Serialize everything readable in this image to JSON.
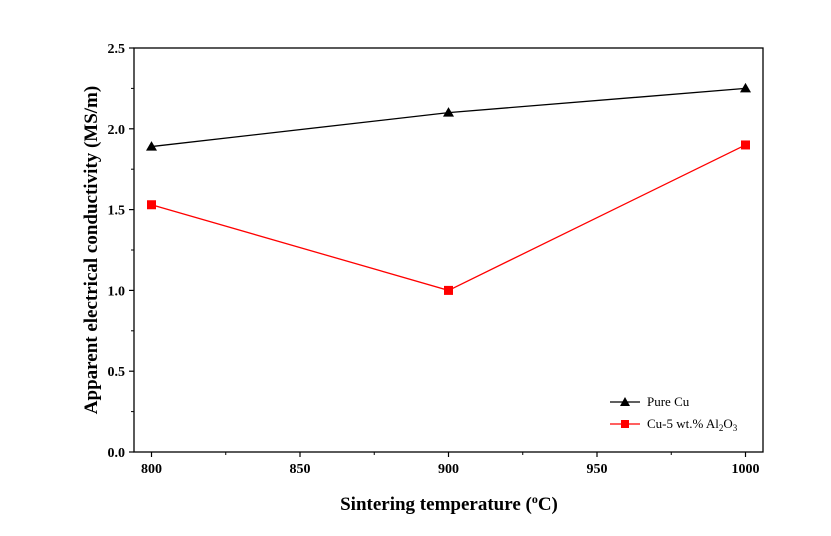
{
  "chart_data": {
    "type": "line",
    "title": "",
    "xlabel": "Sintering temperature",
    "xlabel_unit_prefix": "(",
    "xlabel_unit_sup": "o",
    "xlabel_unit_suffix": "C)",
    "ylabel": "Apparent electrical conductivity (MS/m)",
    "x": [
      800,
      900,
      1000
    ],
    "xlim": [
      800,
      1000
    ],
    "ylim": [
      0.0,
      2.5
    ],
    "xticks": [
      "800",
      "850",
      "900",
      "950",
      "1000"
    ],
    "xtick_values": [
      800,
      850,
      900,
      950,
      1000
    ],
    "yticks": [
      "0.0",
      "0.5",
      "1.0",
      "1.5",
      "2.0",
      "2.5"
    ],
    "ytick_values": [
      0.0,
      0.5,
      1.0,
      1.5,
      2.0,
      2.5
    ],
    "grid": false,
    "legend_position": "bottom-right",
    "series": [
      {
        "name": "Pure Cu",
        "color": "#000000",
        "marker": "triangle",
        "values": [
          1.89,
          2.1,
          2.25
        ]
      },
      {
        "name": "Cu-5 wt.% Al2O3",
        "legend_parts": [
          "Cu-5 wt.% Al",
          "2",
          "O",
          "3"
        ],
        "color": "#ff0000",
        "marker": "square",
        "values": [
          1.53,
          1.0,
          1.9
        ]
      }
    ]
  }
}
